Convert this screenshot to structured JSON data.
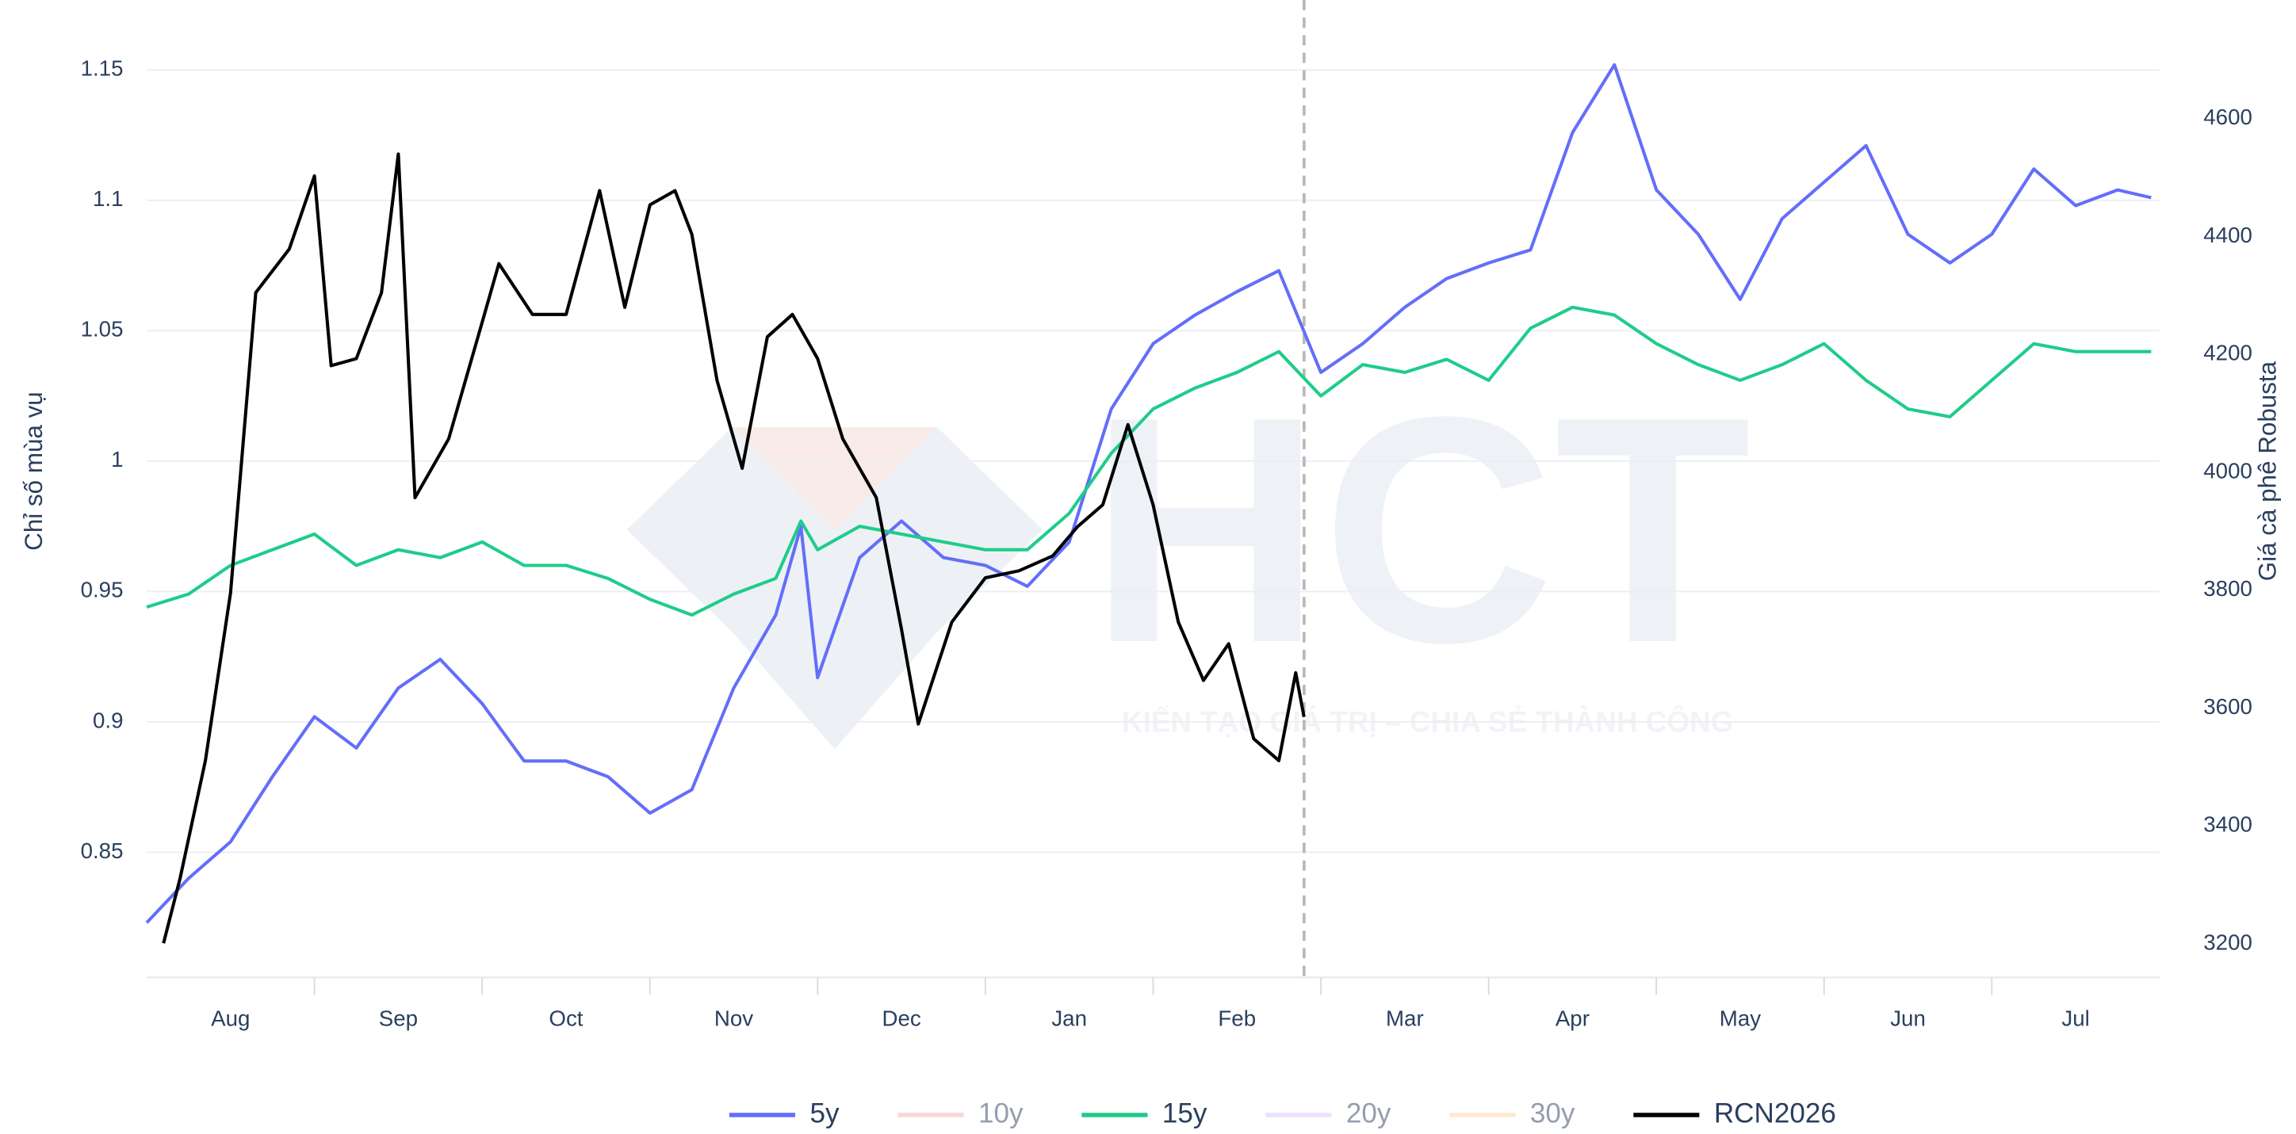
{
  "chart_data": {
    "type": "line",
    "watermark": {
      "logo": "HCT",
      "tagline": "KIẾN TẠO GIÁ TRỊ – CHIA SẺ THÀNH CÔNG"
    },
    "ylabel": "Chỉ số mùa vụ",
    "y2label": "Giá cà phê Robusta",
    "xlim": [
      0,
      12
    ],
    "xticks": [
      {
        "value": 0.5,
        "label": "Aug"
      },
      {
        "value": 1.5,
        "label": "Sep"
      },
      {
        "value": 2.5,
        "label": "Oct"
      },
      {
        "value": 3.5,
        "label": "Nov"
      },
      {
        "value": 4.5,
        "label": "Dec"
      },
      {
        "value": 5.5,
        "label": "Jan"
      },
      {
        "value": 6.5,
        "label": "Feb"
      },
      {
        "value": 7.5,
        "label": "Mar"
      },
      {
        "value": 8.5,
        "label": "Apr"
      },
      {
        "value": 9.5,
        "label": "May"
      },
      {
        "value": 10.5,
        "label": "Jun"
      },
      {
        "value": 11.5,
        "label": "Jul"
      }
    ],
    "ylim": [
      0.802,
      1.16
    ],
    "yticks": [
      0.85,
      0.9,
      0.95,
      1,
      1.05,
      1.1,
      1.15
    ],
    "y2lim": [
      3143,
      4727
    ],
    "y2ticks": [
      3200,
      3400,
      3600,
      3800,
      4000,
      4200,
      4400,
      4600
    ],
    "grid": true,
    "vline": 6.9,
    "legend": "bottom",
    "x": [
      0,
      0.25,
      0.5,
      0.75,
      1,
      1.25,
      1.5,
      1.75,
      2,
      2.25,
      2.5,
      2.75,
      3,
      3.25,
      3.5,
      3.75,
      3.9,
      4,
      4.25,
      4.5,
      4.75,
      5,
      5.25,
      5.5,
      5.75,
      6,
      6.25,
      6.5,
      6.75,
      7,
      7.25,
      7.5,
      7.75,
      8,
      8.25,
      8.5,
      8.75,
      9,
      9.25,
      9.5,
      9.75,
      10,
      10.25,
      10.5,
      10.75,
      11,
      11.25,
      11.5,
      11.75,
      11.95
    ],
    "series": [
      {
        "name": "5y",
        "color": "#636efa",
        "visible": true,
        "values": [
          0.823,
          0.84,
          0.854,
          0.879,
          0.902,
          0.89,
          0.913,
          0.924,
          0.907,
          0.885,
          0.885,
          0.879,
          0.865,
          0.874,
          0.913,
          0.941,
          0.975,
          0.917,
          0.963,
          0.977,
          0.963,
          0.96,
          0.952,
          0.969,
          1.02,
          1.045,
          1.056,
          1.065,
          1.073,
          1.034,
          1.045,
          1.059,
          1.07,
          1.076,
          1.081,
          1.126,
          1.152,
          1.104,
          1.087,
          1.062,
          1.093,
          1.107,
          1.121,
          1.087,
          1.076,
          1.087,
          1.112,
          1.098,
          1.104,
          1.101
        ]
      },
      {
        "name": "10y",
        "color": "#f4b0a4",
        "visible": false
      },
      {
        "name": "15y",
        "color": "#1fcc8a",
        "visible": true,
        "values": [
          0.944,
          0.949,
          0.96,
          0.966,
          0.972,
          0.96,
          0.966,
          0.963,
          0.969,
          0.96,
          0.96,
          0.955,
          0.947,
          0.941,
          0.949,
          0.955,
          0.977,
          0.966,
          0.975,
          0.972,
          0.969,
          0.966,
          0.966,
          0.98,
          1.003,
          1.02,
          1.028,
          1.034,
          1.042,
          1.025,
          1.037,
          1.034,
          1.039,
          1.031,
          1.051,
          1.059,
          1.056,
          1.045,
          1.037,
          1.031,
          1.037,
          1.045,
          1.031,
          1.02,
          1.017,
          1.031,
          1.045,
          1.042,
          1.042,
          1.042
        ]
      },
      {
        "name": "20y",
        "color": "#d9c2f7",
        "visible": false
      },
      {
        "name": "30y",
        "color": "#ffd2a6",
        "visible": false
      },
      {
        "name": "RCN2026",
        "color": "#000000",
        "visible": true,
        "axis": "y2",
        "x": [
          0.1,
          0.2,
          0.35,
          0.5,
          0.65,
          0.85,
          1,
          1.1,
          1.25,
          1.4,
          1.5,
          1.6,
          1.8,
          2,
          2.1,
          2.3,
          2.5,
          2.7,
          2.85,
          3,
          3.15,
          3.25,
          3.4,
          3.55,
          3.7,
          3.85,
          4,
          4.15,
          4.35,
          4.5,
          4.6,
          4.8,
          5,
          5.2,
          5.4,
          5.55,
          5.7,
          5.85,
          6,
          6.15,
          6.3,
          6.45,
          6.6,
          6.75,
          6.85,
          6.9
        ],
        "values": [
          3201,
          3312,
          3511,
          3796,
          4305,
          4379,
          4503,
          4181,
          4193,
          4305,
          4540,
          3957,
          4057,
          4255,
          4354,
          4268,
          4268,
          4478,
          4280,
          4454,
          4478,
          4404,
          4156,
          4007,
          4230,
          4268,
          4193,
          4057,
          3957,
          3734,
          3573,
          3746,
          3821,
          3833,
          3858,
          3908,
          3945,
          4081,
          3945,
          3746,
          3647,
          3709,
          3548,
          3511,
          3660,
          3585
        ]
      }
    ]
  }
}
